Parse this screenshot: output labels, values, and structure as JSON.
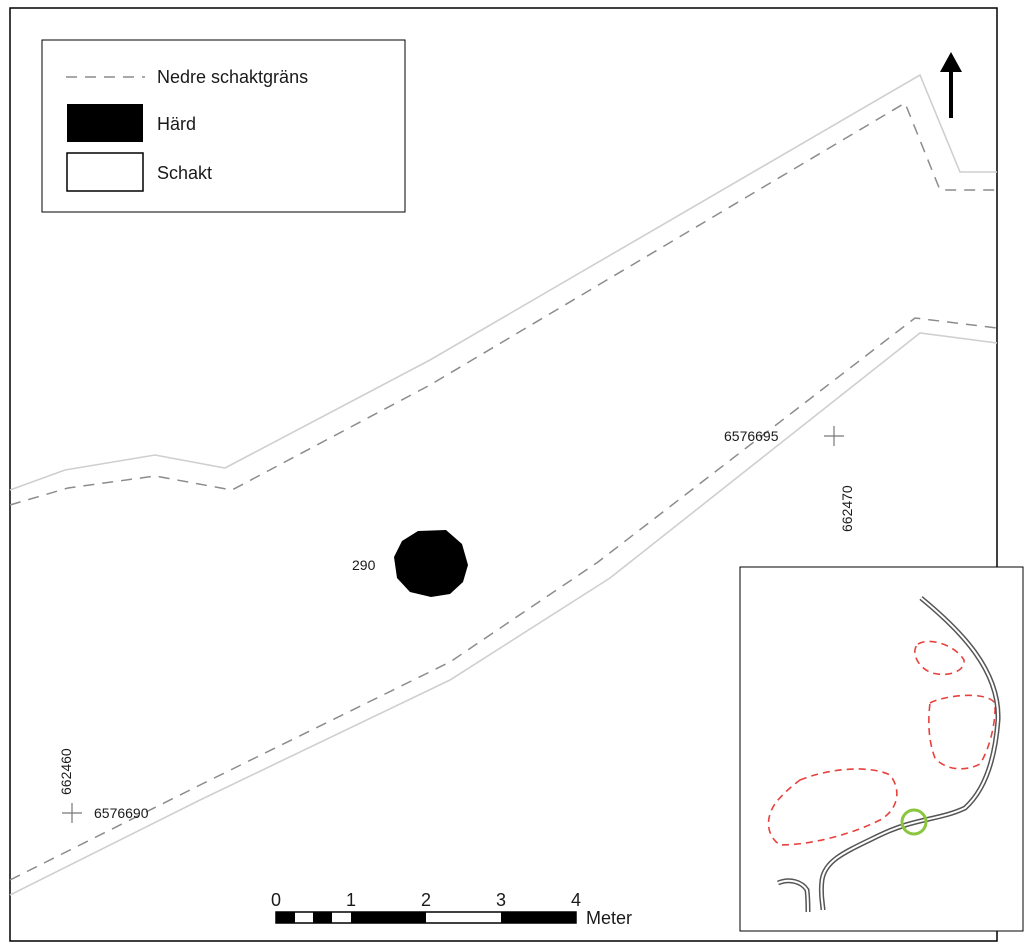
{
  "legend": {
    "items": [
      {
        "symbol": "dashed-line",
        "label": "Nedre schaktgräns"
      },
      {
        "symbol": "filled-black",
        "label": "Härd"
      },
      {
        "symbol": "outlined-box",
        "label": "Schakt"
      }
    ]
  },
  "feature": {
    "id": "290",
    "type": "Härd"
  },
  "coordinates": {
    "point_ne": {
      "northing": "6576695",
      "easting": "662470"
    },
    "point_sw": {
      "northing": "6576690",
      "easting": "662460"
    }
  },
  "scalebar": {
    "ticks": [
      "0",
      "1",
      "2",
      "3",
      "4"
    ],
    "unit": "Meter"
  },
  "north_arrow": {
    "icon": "north-arrow-icon"
  },
  "overview_map": {
    "colors": {
      "areas": "#e8413c",
      "location": "#8cc63f",
      "road": "#555555"
    }
  },
  "colors": {
    "schakt_outline": "#c8c8c8",
    "lower_boundary": "#8c8c8c",
    "frame": "#000000"
  }
}
